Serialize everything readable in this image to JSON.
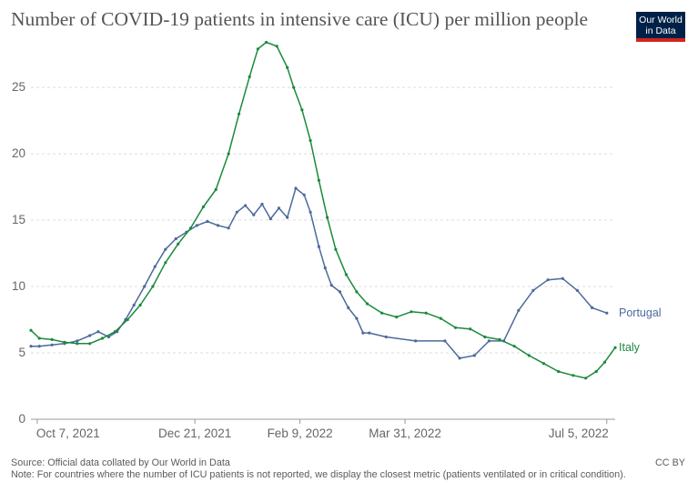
{
  "title": "Number of COVID-19 patients in intensive care (ICU) per million people",
  "logo": {
    "line1": "Our World",
    "line2": "in Data"
  },
  "footer": {
    "source": "Source: Official data collated by Our World in Data",
    "note": "Note: For countries where the number of ICU patients is not reported, we display the closest metric (patients ventilated or in critical condition).",
    "license": "CC BY"
  },
  "colors": {
    "italy": "#1a8a3c",
    "portugal": "#4c6a9c",
    "grid": "#dddddd",
    "text": "#666666"
  },
  "chart_data": {
    "type": "line",
    "title": "Number of COVID-19 patients in intensive care (ICU) per million people",
    "ylim": [
      0,
      28.5
    ],
    "y_ticks": [
      0,
      5,
      10,
      15,
      20,
      25
    ],
    "x_range": [
      "2021-10-04",
      "2022-07-09"
    ],
    "x_ticks": [
      {
        "date": "2021-10-07",
        "label": "Oct 7, 2021"
      },
      {
        "date": "2021-12-21",
        "label": "Dec 21, 2021"
      },
      {
        "date": "2022-02-09",
        "label": "Feb 9, 2022"
      },
      {
        "date": "2022-03-31",
        "label": "Mar 31, 2022"
      },
      {
        "date": "2022-07-05",
        "label": "Jul 5, 2022"
      }
    ],
    "grid": "horizontal-dashed",
    "legend": "end-labels",
    "series": [
      {
        "name": "Italy",
        "color": "#1a8a3c",
        "points": [
          [
            "2021-10-04",
            6.7
          ],
          [
            "2021-10-08",
            6.1
          ],
          [
            "2021-10-14",
            6.0
          ],
          [
            "2021-10-20",
            5.8
          ],
          [
            "2021-10-26",
            5.7
          ],
          [
            "2021-11-01",
            5.7
          ],
          [
            "2021-11-07",
            6.1
          ],
          [
            "2021-11-13",
            6.6
          ],
          [
            "2021-11-19",
            7.5
          ],
          [
            "2021-11-25",
            8.6
          ],
          [
            "2021-12-01",
            10.0
          ],
          [
            "2021-12-07",
            11.8
          ],
          [
            "2021-12-13",
            13.2
          ],
          [
            "2021-12-19",
            14.4
          ],
          [
            "2021-12-25",
            16.0
          ],
          [
            "2021-12-31",
            17.3
          ],
          [
            "2022-01-06",
            20.0
          ],
          [
            "2022-01-11",
            23.0
          ],
          [
            "2022-01-16",
            25.8
          ],
          [
            "2022-01-20",
            27.9
          ],
          [
            "2022-01-24",
            28.4
          ],
          [
            "2022-01-29",
            28.1
          ],
          [
            "2022-02-03",
            26.5
          ],
          [
            "2022-02-06",
            25.0
          ],
          [
            "2022-02-10",
            23.3
          ],
          [
            "2022-02-14",
            21.0
          ],
          [
            "2022-02-18",
            18.0
          ],
          [
            "2022-02-22",
            15.2
          ],
          [
            "2022-02-26",
            12.8
          ],
          [
            "2022-03-03",
            10.9
          ],
          [
            "2022-03-08",
            9.6
          ],
          [
            "2022-03-13",
            8.7
          ],
          [
            "2022-03-20",
            8.0
          ],
          [
            "2022-03-27",
            7.7
          ],
          [
            "2022-04-03",
            8.1
          ],
          [
            "2022-04-10",
            8.0
          ],
          [
            "2022-04-17",
            7.6
          ],
          [
            "2022-04-24",
            6.9
          ],
          [
            "2022-05-01",
            6.8
          ],
          [
            "2022-05-08",
            6.2
          ],
          [
            "2022-05-15",
            6.0
          ],
          [
            "2022-05-22",
            5.5
          ],
          [
            "2022-05-29",
            4.8
          ],
          [
            "2022-06-05",
            4.2
          ],
          [
            "2022-06-12",
            3.6
          ],
          [
            "2022-06-19",
            3.3
          ],
          [
            "2022-06-25",
            3.1
          ],
          [
            "2022-06-30",
            3.6
          ],
          [
            "2022-07-04",
            4.3
          ],
          [
            "2022-07-09",
            5.4
          ]
        ]
      },
      {
        "name": "Portugal",
        "color": "#4c6a9c",
        "points": [
          [
            "2021-10-04",
            5.5
          ],
          [
            "2021-10-08",
            5.5
          ],
          [
            "2021-10-14",
            5.6
          ],
          [
            "2021-10-20",
            5.7
          ],
          [
            "2021-10-26",
            5.9
          ],
          [
            "2021-11-01",
            6.3
          ],
          [
            "2021-11-05",
            6.6
          ],
          [
            "2021-11-10",
            6.2
          ],
          [
            "2021-11-14",
            6.6
          ],
          [
            "2021-11-18",
            7.5
          ],
          [
            "2021-11-22",
            8.6
          ],
          [
            "2021-11-27",
            10.0
          ],
          [
            "2021-12-02",
            11.5
          ],
          [
            "2021-12-07",
            12.8
          ],
          [
            "2021-12-12",
            13.6
          ],
          [
            "2021-12-17",
            14.1
          ],
          [
            "2021-12-22",
            14.6
          ],
          [
            "2021-12-27",
            14.9
          ],
          [
            "2022-01-01",
            14.6
          ],
          [
            "2022-01-06",
            14.4
          ],
          [
            "2022-01-10",
            15.6
          ],
          [
            "2022-01-14",
            16.1
          ],
          [
            "2022-01-18",
            15.4
          ],
          [
            "2022-01-22",
            16.2
          ],
          [
            "2022-01-26",
            15.1
          ],
          [
            "2022-01-30",
            15.9
          ],
          [
            "2022-02-03",
            15.2
          ],
          [
            "2022-02-07",
            17.4
          ],
          [
            "2022-02-11",
            16.9
          ],
          [
            "2022-02-14",
            15.6
          ],
          [
            "2022-02-18",
            13.0
          ],
          [
            "2022-02-21",
            11.4
          ],
          [
            "2022-02-24",
            10.1
          ],
          [
            "2022-02-28",
            9.6
          ],
          [
            "2022-03-04",
            8.4
          ],
          [
            "2022-03-08",
            7.6
          ],
          [
            "2022-03-11",
            6.5
          ],
          [
            "2022-03-14",
            6.5
          ],
          [
            "2022-03-22",
            6.2
          ],
          [
            "2022-04-05",
            5.9
          ],
          [
            "2022-04-19",
            5.9
          ],
          [
            "2022-04-26",
            4.6
          ],
          [
            "2022-05-03",
            4.8
          ],
          [
            "2022-05-10",
            5.9
          ],
          [
            "2022-05-17",
            5.9
          ],
          [
            "2022-05-24",
            8.2
          ],
          [
            "2022-05-31",
            9.7
          ],
          [
            "2022-06-07",
            10.5
          ],
          [
            "2022-06-14",
            10.6
          ],
          [
            "2022-06-21",
            9.7
          ],
          [
            "2022-06-28",
            8.4
          ],
          [
            "2022-07-05",
            8.0
          ]
        ]
      }
    ]
  }
}
